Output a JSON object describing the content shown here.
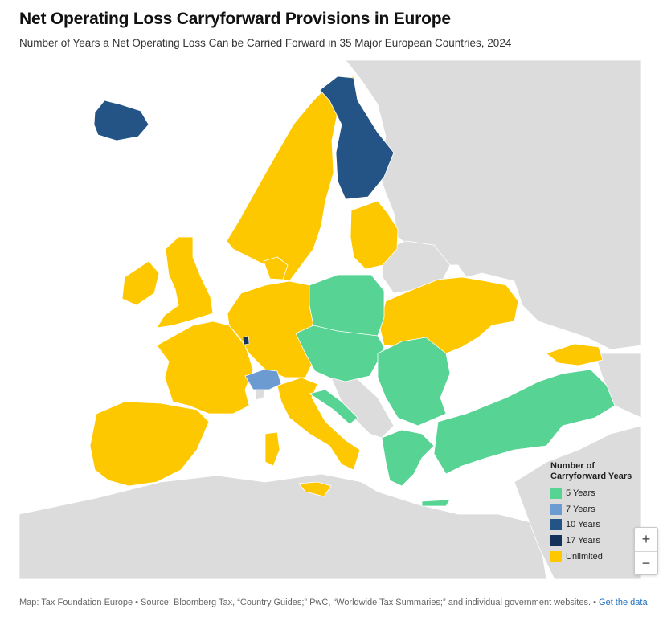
{
  "title": "Net Operating Loss Carryforward Provisions in Europe",
  "subtitle": "Number of Years a Net Operating Loss Can be Carried Forward in 35 Major European Countries, 2024",
  "colors": {
    "background_land": "#dcdcdc",
    "sea": "#ffffff",
    "border": "#ffffff",
    "five_years": "#57d394",
    "seven_years": "#6c9bd2",
    "ten_years": "#245486",
    "seventeen_years": "#14325a",
    "unlimited": "#fec801"
  },
  "legend": {
    "title_line1": "Number of",
    "title_line2": "Carryforward Years",
    "items": [
      {
        "label": "5 Years",
        "color": "#57d394"
      },
      {
        "label": "7 Years",
        "color": "#6c9bd2"
      },
      {
        "label": "10 Years",
        "color": "#245486"
      },
      {
        "label": "17 Years",
        "color": "#14325a"
      },
      {
        "label": "Unlimited",
        "color": "#fec801"
      }
    ]
  },
  "map_data": {
    "regions": [
      {
        "name": "Iceland",
        "category": "10 Years"
      },
      {
        "name": "Finland",
        "category": "10 Years"
      },
      {
        "name": "Switzerland",
        "category": "7 Years"
      },
      {
        "name": "Luxembourg",
        "category": "17 Years"
      },
      {
        "name": "Poland",
        "category": "5 Years"
      },
      {
        "name": "Czech Republic",
        "category": "5 Years"
      },
      {
        "name": "Slovakia",
        "category": "5 Years"
      },
      {
        "name": "Hungary",
        "category": "5 Years"
      },
      {
        "name": "Romania",
        "category": "5 Years"
      },
      {
        "name": "Bulgaria",
        "category": "5 Years"
      },
      {
        "name": "Greece",
        "category": "5 Years"
      },
      {
        "name": "Turkey",
        "category": "5 Years"
      },
      {
        "name": "Croatia",
        "category": "5 Years"
      },
      {
        "name": "Slovenia",
        "category": "5 Years"
      },
      {
        "name": "Austria",
        "category": "5 Years"
      },
      {
        "name": "Norway",
        "category": "Unlimited"
      },
      {
        "name": "Sweden",
        "category": "Unlimited"
      },
      {
        "name": "Estonia",
        "category": "Unlimited"
      },
      {
        "name": "Latvia",
        "category": "Unlimited"
      },
      {
        "name": "Lithuania",
        "category": "Unlimited"
      },
      {
        "name": "Denmark",
        "category": "Unlimited"
      },
      {
        "name": "United Kingdom",
        "category": "Unlimited"
      },
      {
        "name": "Ireland",
        "category": "Unlimited"
      },
      {
        "name": "Netherlands",
        "category": "Unlimited"
      },
      {
        "name": "Belgium",
        "category": "Unlimited"
      },
      {
        "name": "Germany",
        "category": "Unlimited"
      },
      {
        "name": "France",
        "category": "Unlimited"
      },
      {
        "name": "Spain",
        "category": "Unlimited"
      },
      {
        "name": "Portugal",
        "category": "Unlimited"
      },
      {
        "name": "Italy",
        "category": "Unlimited"
      },
      {
        "name": "Ukraine",
        "category": "Unlimited"
      },
      {
        "name": "Georgia",
        "category": "Unlimited"
      }
    ]
  },
  "zoom": {
    "in_label": "+",
    "out_label": "−"
  },
  "footer": {
    "source_text": "Map: Tax Foundation Europe • Source: Bloomberg Tax, “Country Guides;” PwC, “Worldwide Tax Summaries;” and individual government websites. •",
    "link_text": "Get the data"
  }
}
